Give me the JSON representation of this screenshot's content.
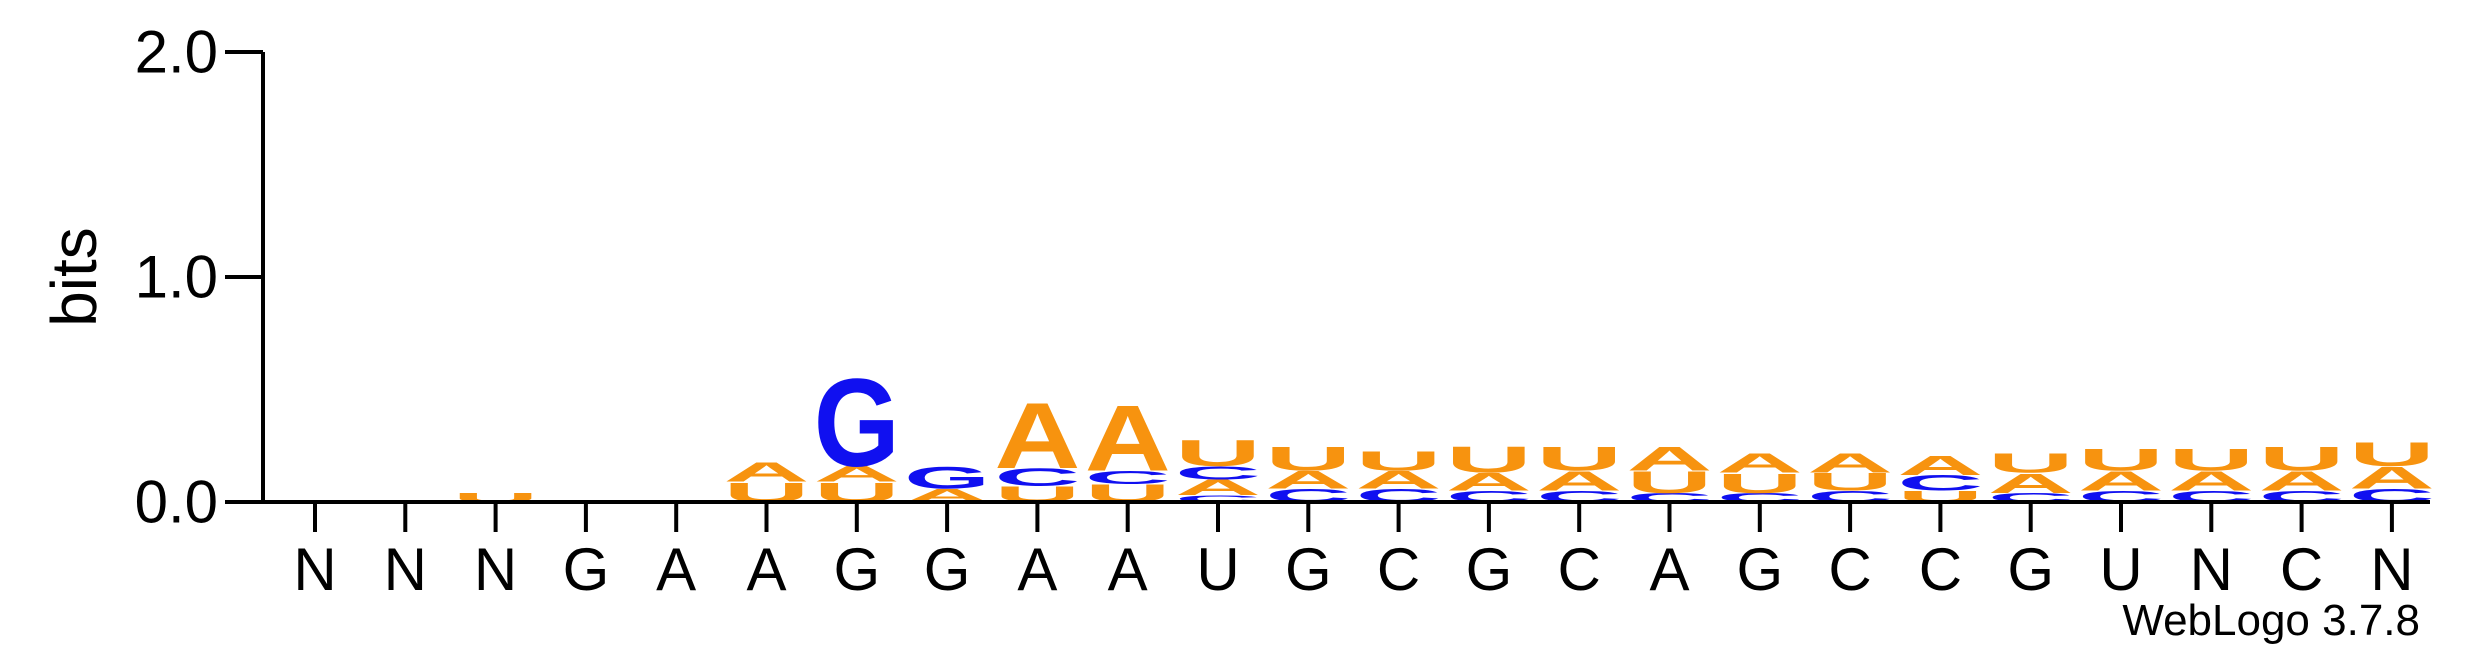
{
  "chart_data": {
    "type": "sequence-logo",
    "ylabel": "bits",
    "ylim": [
      0,
      2.0
    ],
    "yticks": [
      "0.0",
      "1.0",
      "2.0"
    ],
    "footer": "WebLogo 3.7.8",
    "colors": {
      "A": "#f7930f",
      "U": "#f7930f",
      "G": "#1010f0",
      "C": "#1010f0"
    },
    "positions": [
      {
        "label": "N",
        "stack": [
          [
            "A",
            0.01
          ]
        ]
      },
      {
        "label": "N",
        "stack": []
      },
      {
        "label": "N",
        "stack": [
          [
            "U",
            0.04
          ]
        ]
      },
      {
        "label": "G",
        "stack": []
      },
      {
        "label": "A",
        "stack": [
          [
            "A",
            0.01
          ]
        ]
      },
      {
        "label": "A",
        "stack": [
          [
            "U",
            0.09
          ],
          [
            "A",
            0.09
          ]
        ]
      },
      {
        "label": "G",
        "stack": [
          [
            "U",
            0.09
          ],
          [
            "A",
            0.07
          ],
          [
            "G",
            0.4
          ]
        ]
      },
      {
        "label": "G",
        "stack": [
          [
            "A",
            0.06
          ],
          [
            "G",
            0.1
          ]
        ]
      },
      {
        "label": "A",
        "stack": [
          [
            "U",
            0.07
          ],
          [
            "C",
            0.08
          ],
          [
            "A",
            0.3
          ]
        ]
      },
      {
        "label": "A",
        "stack": [
          [
            "U",
            0.08
          ],
          [
            "C",
            0.06
          ],
          [
            "A",
            0.3
          ]
        ]
      },
      {
        "label": "U",
        "stack": [
          [
            "C",
            0.03
          ],
          [
            "A",
            0.07
          ],
          [
            "C",
            0.06
          ],
          [
            "U",
            0.12
          ]
        ]
      },
      {
        "label": "G",
        "stack": [
          [
            "C",
            0.06
          ],
          [
            "A",
            0.08
          ],
          [
            "U",
            0.11
          ]
        ]
      },
      {
        "label": "C",
        "stack": [
          [
            "C",
            0.06
          ],
          [
            "A",
            0.08
          ],
          [
            "U",
            0.09
          ]
        ]
      },
      {
        "label": "G",
        "stack": [
          [
            "C",
            0.05
          ],
          [
            "A",
            0.08
          ],
          [
            "U",
            0.12
          ]
        ]
      },
      {
        "label": "C",
        "stack": [
          [
            "C",
            0.05
          ],
          [
            "A",
            0.09
          ],
          [
            "U",
            0.11
          ]
        ]
      },
      {
        "label": "A",
        "stack": [
          [
            "C",
            0.04
          ],
          [
            "U",
            0.1
          ],
          [
            "A",
            0.11
          ]
        ]
      },
      {
        "label": "G",
        "stack": [
          [
            "C",
            0.04
          ],
          [
            "U",
            0.09
          ],
          [
            "A",
            0.09
          ]
        ]
      },
      {
        "label": "C",
        "stack": [
          [
            "C",
            0.05
          ],
          [
            "U",
            0.08
          ],
          [
            "A",
            0.09
          ]
        ]
      },
      {
        "label": "C",
        "stack": [
          [
            "U",
            0.05
          ],
          [
            "C",
            0.07
          ],
          [
            "A",
            0.09
          ]
        ]
      },
      {
        "label": "G",
        "stack": [
          [
            "C",
            0.04
          ],
          [
            "A",
            0.09
          ],
          [
            "U",
            0.09
          ]
        ]
      },
      {
        "label": "U",
        "stack": [
          [
            "C",
            0.05
          ],
          [
            "A",
            0.09
          ],
          [
            "U",
            0.1
          ]
        ]
      },
      {
        "label": "N",
        "stack": [
          [
            "C",
            0.05
          ],
          [
            "A",
            0.09
          ],
          [
            "U",
            0.1
          ]
        ]
      },
      {
        "label": "C",
        "stack": [
          [
            "C",
            0.05
          ],
          [
            "A",
            0.09
          ],
          [
            "U",
            0.11
          ]
        ]
      },
      {
        "label": "N",
        "stack": [
          [
            "C",
            0.06
          ],
          [
            "A",
            0.1
          ],
          [
            "U",
            0.11
          ]
        ]
      }
    ]
  }
}
